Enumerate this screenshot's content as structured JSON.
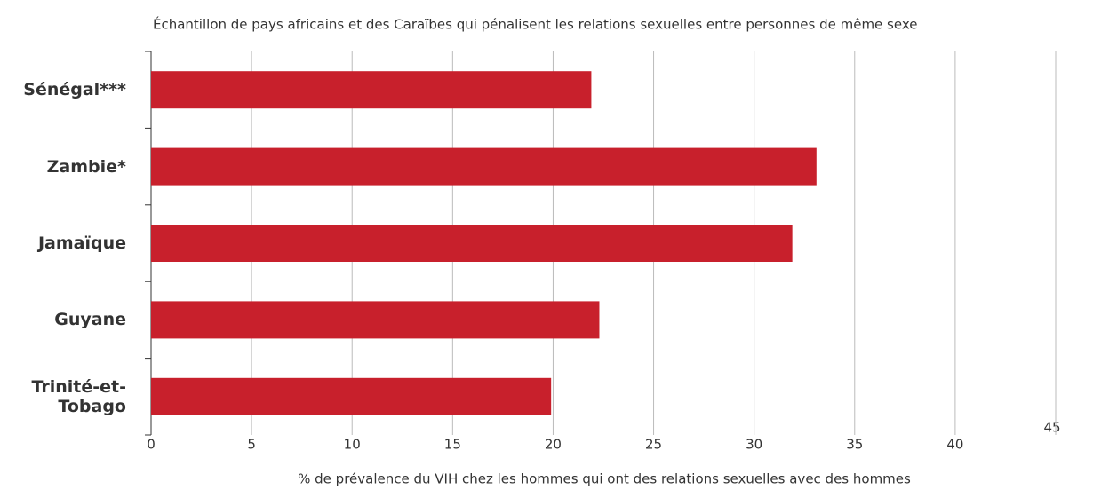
{
  "chart_data": {
    "type": "bar",
    "orientation": "horizontal",
    "title": "Échantillon de pays africains et des Caraïbes qui pénalisent les relations sexuelles entre personnes de même sexe",
    "xlabel": "% de prévalence du VIH chez les hommes qui ont des relations sexuelles avec des hommes",
    "categories": [
      "Sénégal***",
      "Zambie*",
      "Jamaïque",
      "Guyane",
      "Trinité-et-Tobago"
    ],
    "values": [
      21.9,
      33.1,
      31.9,
      22.3,
      19.9
    ],
    "color": "#c8202c",
    "xlim": [
      0,
      45
    ],
    "xticks": [
      0,
      5,
      10,
      15,
      20,
      25,
      30,
      35,
      40,
      45
    ],
    "grid": true
  }
}
